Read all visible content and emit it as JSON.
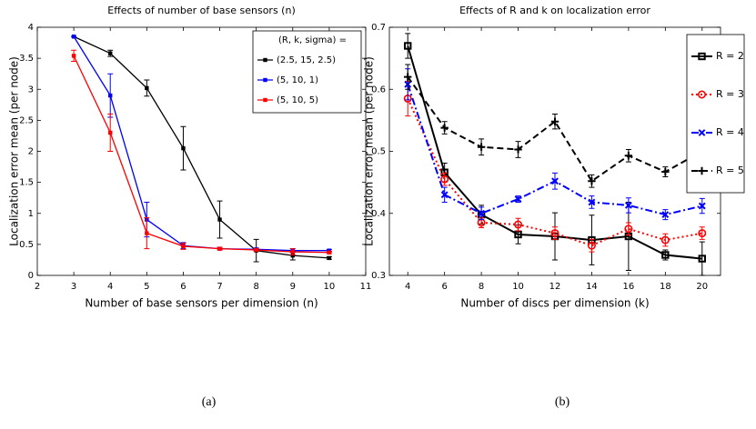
{
  "chart_data": [
    {
      "type": "line",
      "title": "Effects of number of base sensors (n)",
      "x_label": "Number of base sensors per dimension (n)",
      "y_label": "Localization error mean (per node)",
      "caption": "(a)",
      "x": [
        3,
        4,
        5,
        6,
        7,
        8,
        9,
        10
      ],
      "xlim": [
        2,
        11
      ],
      "xticks": [
        2,
        3,
        4,
        5,
        6,
        7,
        8,
        9,
        10,
        11
      ],
      "ylim": [
        0,
        4
      ],
      "yticks": [
        0,
        0.5,
        1,
        1.5,
        2,
        2.5,
        3,
        3.5,
        4
      ],
      "legend_title": "(R, k, sigma) =",
      "legend": "upper right",
      "series": [
        {
          "name": "(2.5, 15, 2.5)",
          "color": "#000000",
          "linestyle": "solid",
          "marker": "filled-square",
          "values": [
            3.85,
            3.58,
            3.02,
            2.05,
            0.9,
            0.4,
            0.32,
            0.28
          ],
          "errors": [
            0,
            0.05,
            0.13,
            0.35,
            0.3,
            0.18,
            0.07,
            0.02
          ]
        },
        {
          "name": "(5, 10, 1)",
          "color": "#0000ff",
          "linestyle": "solid",
          "marker": "filled-square",
          "values": [
            3.85,
            2.9,
            0.9,
            0.48,
            0.43,
            0.42,
            0.4,
            0.4
          ],
          "errors": [
            0,
            0.35,
            0.28,
            0.05,
            0.02,
            0.02,
            0.03,
            0.02
          ]
        },
        {
          "name": "(5, 10, 5)",
          "color": "#ff0000",
          "linestyle": "solid",
          "marker": "filled-square",
          "values": [
            3.54,
            2.3,
            0.68,
            0.47,
            0.43,
            0.41,
            0.38,
            0.37
          ],
          "errors": [
            0.09,
            0.3,
            0.25,
            0.05,
            0.02,
            0.02,
            0.05,
            0.02
          ]
        }
      ]
    },
    {
      "type": "line",
      "title": "Effects of R and k on localization error",
      "x_label": "Number of discs per dimension (k)",
      "y_label": "Localization error mean (per node)",
      "caption": "(b)",
      "x": [
        4,
        6,
        8,
        10,
        12,
        14,
        16,
        18,
        20
      ],
      "xlim": [
        3,
        21
      ],
      "xticks": [
        4,
        6,
        8,
        10,
        12,
        14,
        16,
        18,
        20
      ],
      "ylim": [
        0.3,
        0.7
      ],
      "yticks": [
        0.3,
        0.4,
        0.5,
        0.6,
        0.7
      ],
      "legend": "upper right",
      "series": [
        {
          "name": "R = 2",
          "color": "#000000",
          "linestyle": "solid",
          "marker": "square",
          "values": [
            0.67,
            0.466,
            0.398,
            0.366,
            0.363,
            0.357,
            0.363,
            0.333,
            0.327
          ],
          "errors": [
            0.02,
            0.015,
            0.015,
            0.015,
            0.038,
            0.04,
            0.055,
            0.008,
            0.027
          ]
        },
        {
          "name": "R = 3",
          "color": "#ff0000",
          "linestyle": "dotted",
          "marker": "circle",
          "values": [
            0.585,
            0.455,
            0.385,
            0.382,
            0.368,
            0.348,
            0.375,
            0.357,
            0.368
          ],
          "errors": [
            0.028,
            0.01,
            0.008,
            0.01,
            0.01,
            0.01,
            0.01,
            0.01,
            0.01
          ]
        },
        {
          "name": "R = 4",
          "color": "#0000ff",
          "linestyle": "dashdot",
          "marker": "x",
          "values": [
            0.608,
            0.43,
            0.4,
            0.423,
            0.452,
            0.418,
            0.413,
            0.398,
            0.412
          ],
          "errors": [
            0.025,
            0.012,
            0.01,
            0.005,
            0.013,
            0.01,
            0.012,
            0.008,
            0.012
          ]
        },
        {
          "name": "R = 5",
          "color": "#000000",
          "linestyle": "dashed",
          "marker": "plus",
          "values": [
            0.62,
            0.538,
            0.507,
            0.503,
            0.548,
            0.452,
            0.493,
            0.467,
            0.5
          ],
          "errors": [
            0.02,
            0.01,
            0.013,
            0.013,
            0.012,
            0.01,
            0.01,
            0.008,
            0.01
          ]
        }
      ]
    }
  ]
}
